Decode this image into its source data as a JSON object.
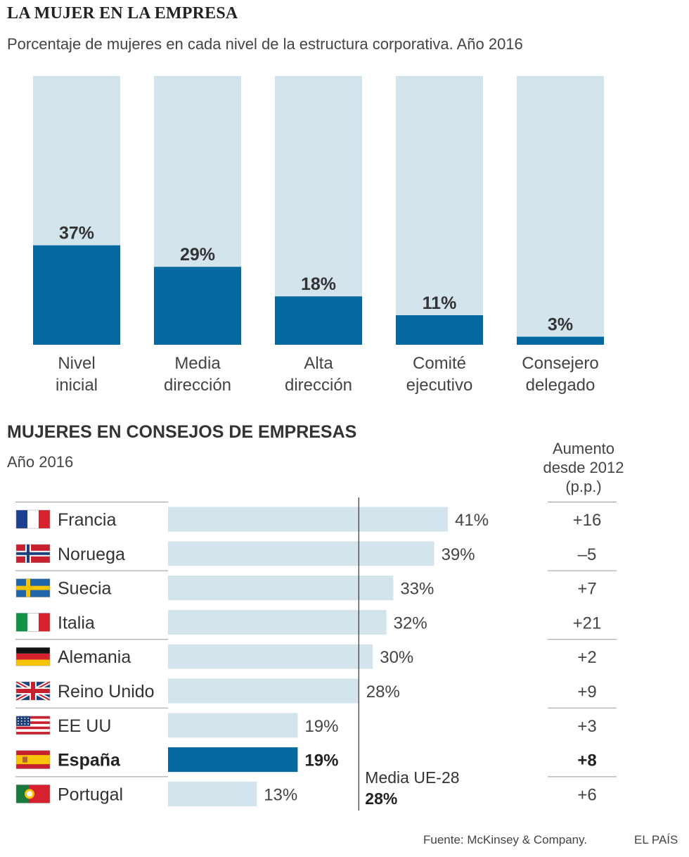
{
  "header": {
    "title": "LA MUJER EN LA EMPRESA",
    "subtitle": "Porcentaje de mujeres en cada nivel de la estructura corporativa. Año 2016"
  },
  "boards": {
    "title": "MUJERES EN CONSEJOS DE EMPRESAS",
    "subtitle": "Año 2016",
    "increase_header": [
      "Aumento",
      "desde 2012",
      "(p.p.)"
    ],
    "eu_average_label": "Media UE-28",
    "eu_average_value": "28%"
  },
  "footer": {
    "source": "Fuente: McKinsey & Company.",
    "brand": "EL PAÍS"
  },
  "colors": {
    "bar_dark": "#04699f",
    "bar_light": "#d3e4ec",
    "text": "#333333",
    "rule": "#999999"
  },
  "chart_data": [
    {
      "type": "bar",
      "title": "LA MUJER EN LA EMPRESA",
      "subtitle": "Porcentaje de mujeres en cada nivel de la estructura corporativa. Año 2016",
      "categories": [
        [
          "Nivel",
          "inicial"
        ],
        [
          "Media",
          "dirección"
        ],
        [
          "Alta",
          "dirección"
        ],
        [
          "Comité",
          "ejecutivo"
        ],
        [
          "Consejero",
          "delegado"
        ]
      ],
      "values": [
        37,
        29,
        18,
        11,
        3
      ],
      "labels": [
        "37%",
        "29%",
        "18%",
        "11%",
        "3%"
      ],
      "ylim": [
        0,
        100
      ]
    },
    {
      "type": "bar",
      "orientation": "horizontal",
      "title": "MUJERES EN CONSEJOS DE EMPRESAS",
      "subtitle": "Año 2016",
      "categories": [
        "Francia",
        "Noruega",
        "Suecia",
        "Italia",
        "Alemania",
        "Reino Unido",
        "EE UU",
        "España",
        "Portugal"
      ],
      "flags": [
        "flag-france-icon",
        "flag-norway-icon",
        "flag-sweden-icon",
        "flag-italy-icon",
        "flag-germany-icon",
        "flag-uk-icon",
        "flag-usa-icon",
        "flag-spain-icon",
        "flag-portugal-icon"
      ],
      "values": [
        41,
        39,
        33,
        32,
        30,
        28,
        19,
        19,
        13
      ],
      "labels": [
        "41%",
        "39%",
        "33%",
        "32%",
        "30%",
        "28%",
        "19%",
        "19%",
        "13%"
      ],
      "increase_since_2012": [
        "+16",
        "–5",
        "+7",
        "+21",
        "+2",
        "+9",
        "+3",
        "+8",
        "+6"
      ],
      "highlight": "España",
      "reference_line": {
        "label": "Media UE-28",
        "value": 28
      },
      "xlim": [
        0,
        41
      ]
    }
  ]
}
